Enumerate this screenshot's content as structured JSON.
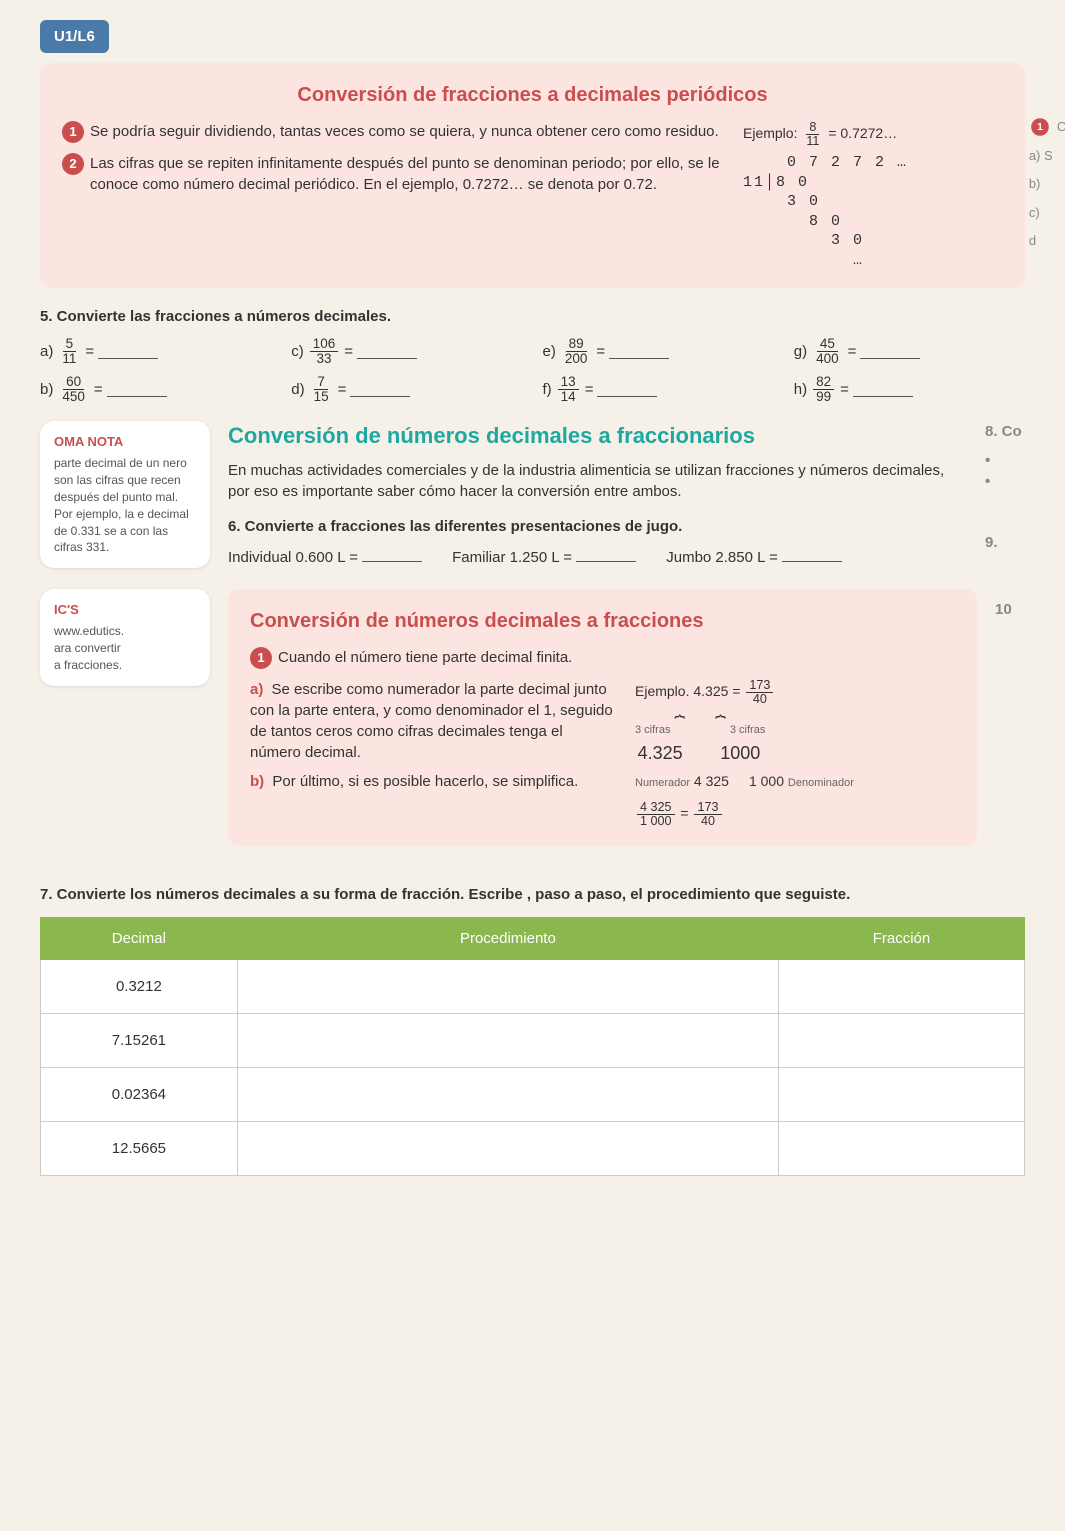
{
  "unit_tag": "U1/L6",
  "box1": {
    "title": "Conversión de fracciones a decimales periódicos",
    "bullet1": "Se podría seguir dividiendo, tantas veces como se quiera, y nunca obtener cero como residuo.",
    "bullet2": "Las cifras que se repiten infinitamente después del punto se denominan periodo; por ello, se le conoce como número decimal periódico. En el ejemplo, 0.7272… se denota por 0.72.",
    "example_label": "Ejemplo:",
    "example_frac_num": "8",
    "example_frac_den": "11",
    "example_result": "= 0.7272…",
    "division": "    0 7 2 7 2 …\n11│8 0\n    3 0\n      8 0\n        3 0\n          …"
  },
  "q5": {
    "heading": "5. Convierte las fracciones a números decimales.",
    "items": [
      {
        "lbl": "a)",
        "num": "5",
        "den": "11"
      },
      {
        "lbl": "c)",
        "num": "106",
        "den": "33"
      },
      {
        "lbl": "e)",
        "num": "89",
        "den": "200"
      },
      {
        "lbl": "g)",
        "num": "45",
        "den": "400"
      },
      {
        "lbl": "b)",
        "num": "60",
        "den": "450"
      },
      {
        "lbl": "d)",
        "num": "7",
        "den": "15"
      },
      {
        "lbl": "f)",
        "num": "13",
        "den": "14"
      },
      {
        "lbl": "h)",
        "num": "82",
        "den": "99"
      }
    ]
  },
  "note1": {
    "title": "OMA NOTA",
    "body": "parte decimal de un nero son las cifras que recen después del punto mal. Por ejemplo, la e decimal de 0.331 se a con las cifras 331."
  },
  "cyan1": {
    "title": "Conversión de números decimales a fraccionarios",
    "para": "En muchas actividades comerciales y de la industria alimenticia se utilizan fracciones y números decimales, por eso es importante saber cómo hacer la conversión entre ambos."
  },
  "q6": {
    "heading": "6. Convierte a fracciones las diferentes presentaciones de jugo.",
    "items": [
      "Individual 0.600 L =",
      "Familiar 1.250 L =",
      "Jumbo 2.850 L ="
    ]
  },
  "box2": {
    "title": "Conversión de números decimales a fracciones",
    "lead": "Cuando el número tiene parte decimal finita.",
    "a": "Se escribe como numerador la parte decimal junto con la parte entera, y como denominador el 1, seguido de tantos ceros como cifras decimales tenga el número decimal.",
    "b": "Por último, si es posible hacerlo, se simplifica.",
    "ex_label": "Ejemplo.",
    "ex_eq_left": "4.325",
    "ex_eq_num": "173",
    "ex_eq_den": "40",
    "cifras3": "3 cifras",
    "num_val": "4.325",
    "den_val": "1000",
    "numerador_lbl": "Numerador",
    "numerador_val": "4 325",
    "denominador_lbl": "Denominador",
    "denominador_val": "1 000",
    "simpl_from_num": "4 325",
    "simpl_from_den": "1 000",
    "simpl_to_num": "173",
    "simpl_to_den": "40"
  },
  "note2": {
    "title": "IC'S",
    "l1": "www.edutics.",
    "l2": "ara convertir",
    "l3": "a fracciones."
  },
  "q7": {
    "heading": "7. Convierte los números decimales a su forma de fracción. Escribe , paso a paso, el procedimiento que seguiste.",
    "headers": [
      "Decimal",
      "Procedimiento",
      "Fracción"
    ],
    "rows": [
      "0.3212",
      "7.15261",
      "0.02364",
      "12.5665"
    ]
  },
  "cutoff": {
    "l1": "Cuar",
    "l2": "a) S",
    "l3": "b)",
    "l4": "c)",
    "l5": "d",
    "l6": "8. Co",
    "l7": "9.",
    "l8": "10"
  },
  "colors": {
    "pink": "#fce4e0",
    "red": "#c94f4f",
    "cyan": "#1fa8a0",
    "green": "#8bb84e",
    "blue": "#4a7ba8"
  }
}
